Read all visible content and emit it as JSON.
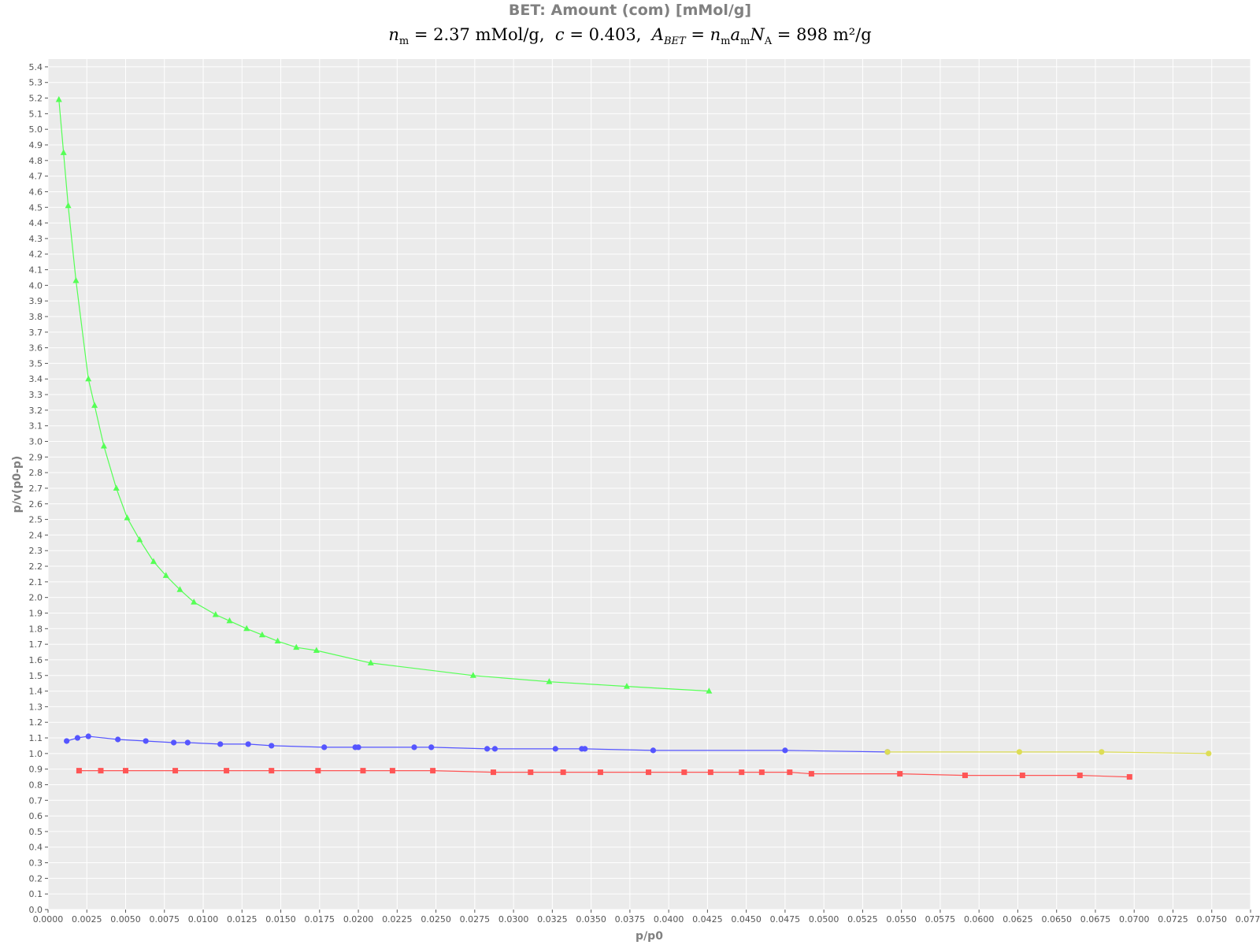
{
  "chart_data": {
    "type": "line",
    "title": "BET: Amount (com) [mMol/g]",
    "subtitle": {
      "nm_value": "2.37 mMol/g",
      "c_value": "0.403",
      "abet_value": "898 m²/g"
    },
    "xlabel": "p/p0",
    "ylabel": "p/v(p0-p)",
    "xlim": [
      0,
      0.0775
    ],
    "ylim": [
      0,
      5.45
    ],
    "x_tick_step": 0.0025,
    "y_tick_step": 0.1,
    "grid": true,
    "legend": "none",
    "series": [
      {
        "color": "#55ff55",
        "marker": "triangle",
        "x": [
          0.0007,
          0.001,
          0.0013,
          0.0018,
          0.0026,
          0.003,
          0.0036,
          0.0044,
          0.0051,
          0.0059,
          0.0068,
          0.0076,
          0.0085,
          0.0094,
          0.0108,
          0.0117,
          0.0128,
          0.0138,
          0.0148,
          0.016,
          0.0173,
          0.0208,
          0.0274,
          0.0323,
          0.0373,
          0.0426
        ],
        "y": [
          5.19,
          4.85,
          4.51,
          4.03,
          3.4,
          3.23,
          2.97,
          2.7,
          2.51,
          2.37,
          2.23,
          2.14,
          2.05,
          1.97,
          1.89,
          1.85,
          1.8,
          1.76,
          1.72,
          1.68,
          1.66,
          1.58,
          1.5,
          1.46,
          1.43,
          1.4
        ]
      },
      {
        "color": "#5555ff",
        "marker": "circle",
        "x": [
          0.0012,
          0.0019,
          0.0026,
          0.0045,
          0.0063,
          0.0081,
          0.009,
          0.0111,
          0.0129,
          0.0144,
          0.0178,
          0.0198,
          0.02,
          0.0236,
          0.0247,
          0.0283,
          0.0288,
          0.0327,
          0.0344,
          0.0346,
          0.039,
          0.0475,
          0.0541
        ],
        "y": [
          1.08,
          1.1,
          1.11,
          1.09,
          1.08,
          1.07,
          1.07,
          1.06,
          1.06,
          1.05,
          1.04,
          1.04,
          1.04,
          1.04,
          1.04,
          1.03,
          1.03,
          1.03,
          1.03,
          1.03,
          1.02,
          1.02,
          1.01
        ]
      },
      {
        "color": "#dddd55",
        "marker": "circle",
        "x": [
          0.0541,
          0.0626,
          0.0679,
          0.0748
        ],
        "y": [
          1.01,
          1.01,
          1.01,
          1.0
        ]
      },
      {
        "color": "#ff5555",
        "marker": "square",
        "x": [
          0.002,
          0.0034,
          0.005,
          0.0082,
          0.0115,
          0.0144,
          0.0174,
          0.0203,
          0.0222,
          0.0248,
          0.0287,
          0.0311,
          0.0332,
          0.0356,
          0.0387,
          0.041,
          0.0427,
          0.0447,
          0.046,
          0.0478,
          0.0492,
          0.0549,
          0.0591,
          0.0628,
          0.0665,
          0.0697
        ],
        "y": [
          0.89,
          0.89,
          0.89,
          0.89,
          0.89,
          0.89,
          0.89,
          0.89,
          0.89,
          0.89,
          0.88,
          0.88,
          0.88,
          0.88,
          0.88,
          0.88,
          0.88,
          0.88,
          0.88,
          0.88,
          0.87,
          0.87,
          0.86,
          0.86,
          0.86,
          0.85
        ]
      }
    ]
  }
}
